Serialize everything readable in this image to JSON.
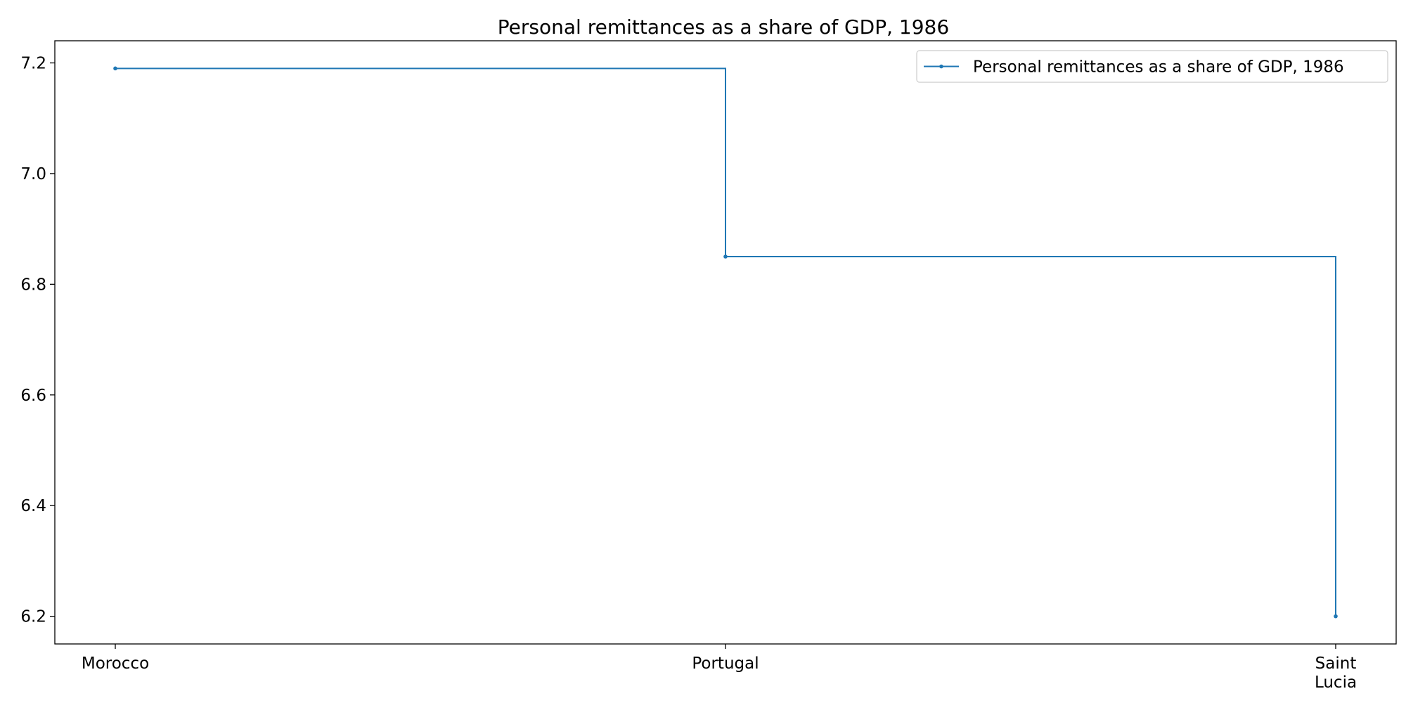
{
  "chart_data": {
    "type": "line",
    "step": "post",
    "title": "Personal remittances as a share of GDP, 1986",
    "xlabel": "",
    "ylabel": "",
    "categories": [
      "Morocco",
      "Portugal",
      "Saint\nLucia"
    ],
    "series": [
      {
        "name": "Personal remittances as a share of GDP, 1986",
        "values": [
          7.19,
          6.85,
          6.2
        ],
        "color": "#1f77b4"
      }
    ],
    "ylim": [
      6.15,
      7.24
    ],
    "yticks": [
      6.2,
      6.4,
      6.6,
      6.8,
      7.0,
      7.2
    ],
    "ytick_labels": [
      "6.2",
      "6.4",
      "6.6",
      "6.8",
      "7.0",
      "7.2"
    ],
    "grid": false,
    "legend_position": "top-right"
  }
}
